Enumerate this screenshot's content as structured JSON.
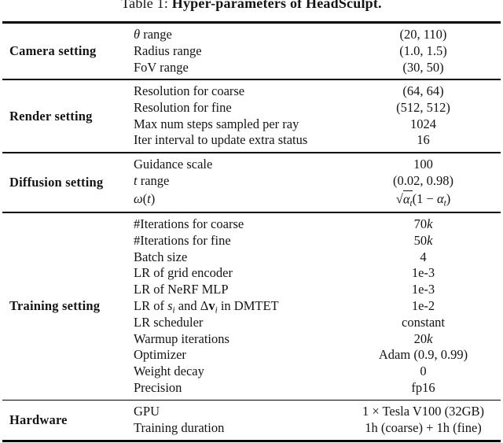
{
  "colors": {
    "background": "#ffffff",
    "text": "#141414",
    "rule": "#000000"
  },
  "caption": {
    "prefix": "Table 1: ",
    "title": "Hyper-parameters of HeadSculpt."
  },
  "table": {
    "sections": [
      {
        "category": "Camera setting",
        "rows": [
          {
            "param": [
              {
                "t": "θ",
                "i": true
              },
              {
                "t": " range"
              }
            ],
            "value": [
              {
                "t": "(20, 110)"
              }
            ]
          },
          {
            "param": [
              {
                "t": "Radius range"
              }
            ],
            "value": [
              {
                "t": "(1.0, 1.5)"
              }
            ]
          },
          {
            "param": [
              {
                "t": "FoV range"
              }
            ],
            "value": [
              {
                "t": "(30, 50)"
              }
            ]
          }
        ]
      },
      {
        "category": "Render setting",
        "rows": [
          {
            "param": [
              {
                "t": "Resolution for coarse"
              }
            ],
            "value": [
              {
                "t": "(64, 64)"
              }
            ]
          },
          {
            "param": [
              {
                "t": "Resolution for fine"
              }
            ],
            "value": [
              {
                "t": "(512, 512)"
              }
            ]
          },
          {
            "param": [
              {
                "t": "Max num steps sampled per ray"
              }
            ],
            "value": [
              {
                "t": "1024"
              }
            ]
          },
          {
            "param": [
              {
                "t": "Iter interval to update extra status"
              }
            ],
            "value": [
              {
                "t": "16"
              }
            ]
          }
        ]
      },
      {
        "category": "Diffusion setting",
        "rows": [
          {
            "param": [
              {
                "t": "Guidance scale"
              }
            ],
            "value": [
              {
                "t": "100"
              }
            ]
          },
          {
            "param": [
              {
                "t": "t",
                "i": true
              },
              {
                "t": " range"
              }
            ],
            "value": [
              {
                "t": "(0.02, 0.98)"
              }
            ]
          },
          {
            "param": [
              {
                "t": "ω",
                "i": true
              },
              {
                "t": "("
              },
              {
                "t": "t",
                "i": true
              },
              {
                "t": ")"
              }
            ],
            "tall": true,
            "value": [
              {
                "t": "√"
              },
              {
                "ov": true,
                "seg": [
                  {
                    "t": "α",
                    "i": true
                  },
                  {
                    "t": "t",
                    "i": true,
                    "sub": true
                  }
                ]
              },
              {
                "t": "(1 − "
              },
              {
                "t": "α",
                "i": true
              },
              {
                "t": "t",
                "i": true,
                "sub": true
              },
              {
                "t": ")"
              }
            ]
          }
        ]
      },
      {
        "category": "Training setting",
        "rows": [
          {
            "param": [
              {
                "t": "#Iterations for coarse"
              }
            ],
            "value": [
              {
                "t": "70"
              },
              {
                "t": "k",
                "i": true
              }
            ]
          },
          {
            "param": [
              {
                "t": "#Iterations for fine"
              }
            ],
            "value": [
              {
                "t": "50"
              },
              {
                "t": "k",
                "i": true
              }
            ]
          },
          {
            "param": [
              {
                "t": "Batch size"
              }
            ],
            "value": [
              {
                "t": "4"
              }
            ]
          },
          {
            "param": [
              {
                "t": "LR of grid encoder"
              }
            ],
            "value": [
              {
                "t": "1e-3"
              }
            ]
          },
          {
            "param": [
              {
                "t": "LR of NeRF MLP"
              }
            ],
            "value": [
              {
                "t": "1e-3"
              }
            ]
          },
          {
            "param": [
              {
                "t": "LR of "
              },
              {
                "t": "s",
                "i": true
              },
              {
                "t": "i",
                "i": true,
                "sub": true
              },
              {
                "t": " and Δ"
              },
              {
                "t": "v",
                "b": true
              },
              {
                "t": "i",
                "i": true,
                "sub": true
              },
              {
                "t": " in DMTET"
              }
            ],
            "value": [
              {
                "t": "1e-2"
              }
            ]
          },
          {
            "param": [
              {
                "t": "LR scheduler"
              }
            ],
            "value": [
              {
                "t": "constant"
              }
            ]
          },
          {
            "param": [
              {
                "t": "Warmup iterations"
              }
            ],
            "value": [
              {
                "t": "20"
              },
              {
                "t": "k",
                "i": true
              }
            ]
          },
          {
            "param": [
              {
                "t": "Optimizer"
              }
            ],
            "value": [
              {
                "t": "Adam (0.9, 0.99)"
              }
            ]
          },
          {
            "param": [
              {
                "t": "Weight decay"
              }
            ],
            "value": [
              {
                "t": "0"
              }
            ]
          },
          {
            "param": [
              {
                "t": "Precision"
              }
            ],
            "value": [
              {
                "t": "fp16"
              }
            ]
          }
        ]
      },
      {
        "category": "Hardware",
        "rows": [
          {
            "param": [
              {
                "t": "GPU"
              }
            ],
            "value": [
              {
                "t": "1 × Tesla V100 (32GB)"
              }
            ]
          },
          {
            "param": [
              {
                "t": "Training duration"
              }
            ],
            "value": [
              {
                "t": "1h (coarse) + 1h (fine)"
              }
            ]
          }
        ]
      }
    ]
  }
}
